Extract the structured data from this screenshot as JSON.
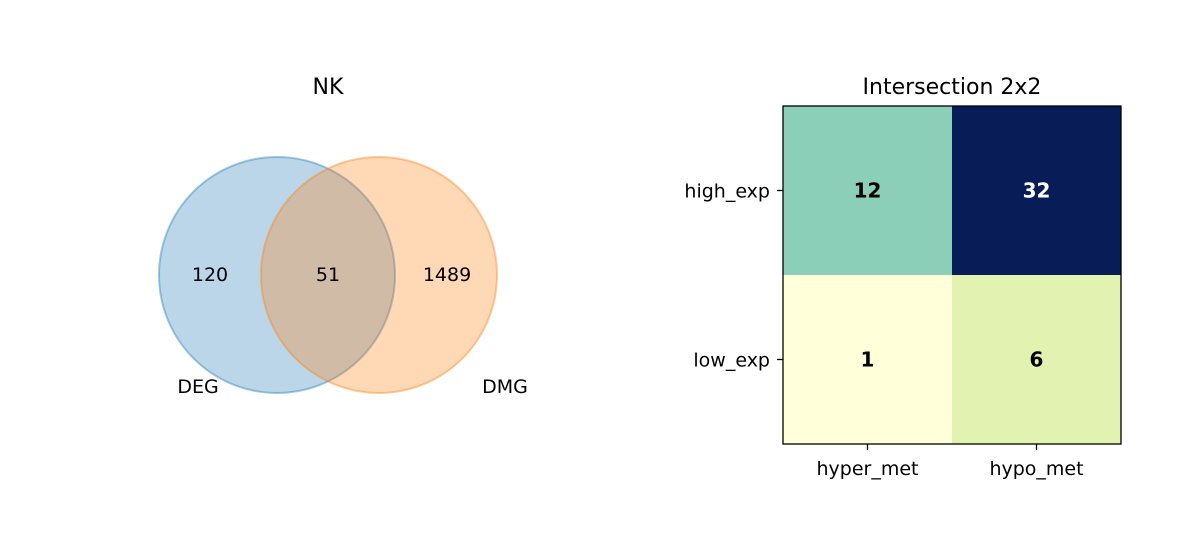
{
  "chart_data": [
    {
      "type": "venn",
      "title": "NK",
      "sets": [
        {
          "name": "DEG",
          "only": 120,
          "color": "#1f77b4"
        },
        {
          "name": "DMG",
          "only": 1489,
          "color": "#ff7f0e"
        }
      ],
      "intersection": 51
    },
    {
      "type": "heatmap",
      "title": "Intersection 2x2",
      "rows": [
        "high_exp",
        "low_exp"
      ],
      "cols": [
        "hyper_met",
        "hypo_met"
      ],
      "values": [
        [
          12,
          32
        ],
        [
          1,
          6
        ]
      ],
      "colormap": "YlGnBu",
      "cell_colors": [
        [
          "#8bcfb9",
          "#081d58"
        ],
        [
          "#ffffd9",
          "#e2f2b1"
        ]
      ],
      "text_colors": [
        [
          "#000000",
          "#ffffff"
        ],
        [
          "#000000",
          "#000000"
        ]
      ]
    }
  ]
}
